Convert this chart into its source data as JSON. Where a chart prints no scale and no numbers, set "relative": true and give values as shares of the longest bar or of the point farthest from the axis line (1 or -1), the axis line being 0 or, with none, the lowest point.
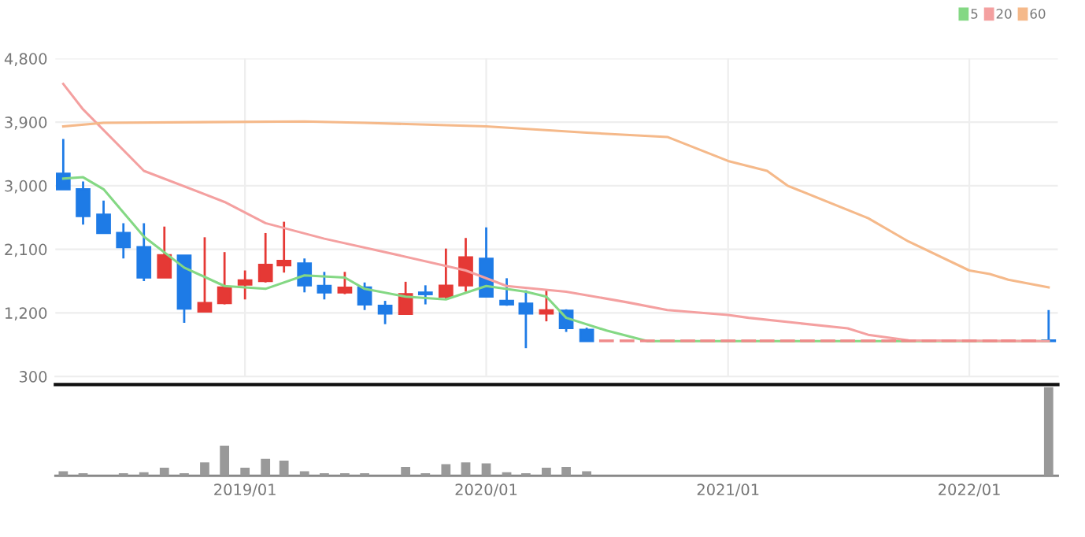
{
  "chart_data": [
    {
      "type": "candlestick",
      "x": [
        "2018-04",
        "2018-05",
        "2018-06",
        "2018-07",
        "2018-08",
        "2018-09",
        "2018-10",
        "2018-11",
        "2018-12",
        "2019-01",
        "2019-02",
        "2019-03",
        "2019-04",
        "2019-05",
        "2019-06",
        "2019-07",
        "2019-08",
        "2019-09",
        "2019-10",
        "2019-11",
        "2019-12",
        "2020-01",
        "2020-02",
        "2020-03",
        "2020-04",
        "2020-05",
        "2020-06",
        "2020-07",
        "2020-08",
        "2020-09",
        "2020-10",
        "2020-11",
        "2020-12",
        "2021-01",
        "2021-02",
        "2021-03",
        "2021-04",
        "2021-05",
        "2021-06",
        "2021-07",
        "2021-08",
        "2021-09",
        "2021-10",
        "2021-11",
        "2021-12",
        "2022-01",
        "2022-02",
        "2022-03",
        "2022-04",
        "2022-05"
      ],
      "ohlc": [
        [
          3170,
          3660,
          2950,
          2950
        ],
        [
          2950,
          3060,
          2450,
          2570
        ],
        [
          2590,
          2790,
          2330,
          2330
        ],
        [
          2330,
          2470,
          1970,
          2130
        ],
        [
          2130,
          2470,
          1650,
          1700
        ],
        [
          1700,
          2420,
          1700,
          2015
        ],
        [
          2010,
          2010,
          1060,
          1260
        ],
        [
          1220,
          2270,
          1220,
          1340
        ],
        [
          1340,
          2060,
          1320,
          1560
        ],
        [
          1600,
          1800,
          1390,
          1660
        ],
        [
          1650,
          2330,
          1630,
          1880
        ],
        [
          1875,
          2490,
          1770,
          1935
        ],
        [
          1900,
          1970,
          1490,
          1590
        ],
        [
          1580,
          1780,
          1390,
          1490
        ],
        [
          1490,
          1780,
          1465,
          1555
        ],
        [
          1560,
          1630,
          1240,
          1320
        ],
        [
          1300,
          1370,
          1040,
          1190
        ],
        [
          1185,
          1640,
          1185,
          1465
        ],
        [
          1487,
          1590,
          1320,
          1465
        ],
        [
          1430,
          2110,
          1385,
          1585
        ],
        [
          1590,
          2260,
          1500,
          1985
        ],
        [
          1965,
          2410,
          1420,
          1430
        ],
        [
          1370,
          1690,
          1300,
          1320
        ],
        [
          1330,
          1520,
          700,
          1190
        ],
        [
          1190,
          1520,
          1080,
          1235
        ],
        [
          1230,
          1250,
          930,
          985
        ],
        [
          960,
          990,
          800,
          800
        ],
        [
          800,
          800,
          800,
          800
        ],
        [
          800,
          800,
          800,
          800
        ],
        [
          800,
          800,
          800,
          800
        ],
        [
          800,
          800,
          800,
          800
        ],
        [
          800,
          800,
          800,
          800
        ],
        [
          800,
          800,
          800,
          800
        ],
        [
          800,
          800,
          800,
          800
        ],
        [
          800,
          800,
          800,
          800
        ],
        [
          800,
          800,
          800,
          800
        ],
        [
          800,
          800,
          800,
          800
        ],
        [
          800,
          800,
          800,
          800
        ],
        [
          800,
          800,
          800,
          800
        ],
        [
          800,
          800,
          800,
          800
        ],
        [
          800,
          800,
          800,
          800
        ],
        [
          800,
          800,
          800,
          800
        ],
        [
          800,
          800,
          800,
          800
        ],
        [
          800,
          800,
          800,
          800
        ],
        [
          800,
          800,
          800,
          800
        ],
        [
          800,
          800,
          800,
          800
        ],
        [
          800,
          800,
          800,
          800
        ],
        [
          800,
          800,
          800,
          800
        ],
        [
          800,
          800,
          800,
          800
        ],
        [
          800,
          1240,
          800,
          800
        ]
      ],
      "colors": [
        "#1e7be6",
        "#1e7be6",
        "#1e7be6",
        "#1e7be6",
        "#1e7be6",
        "#e53935",
        "#1e7be6",
        "#e53935",
        "#e53935",
        "#e53935",
        "#e53935",
        "#e53935",
        "#1e7be6",
        "#1e7be6",
        "#e53935",
        "#1e7be6",
        "#1e7be6",
        "#e53935",
        "#1e7be6",
        "#e53935",
        "#e53935",
        "#1e7be6",
        "#1e7be6",
        "#1e7be6",
        "#e53935",
        "#1e7be6",
        "#1e7be6",
        "#f08a8a",
        "#f08a8a",
        "#f08a8a",
        "#f08a8a",
        "#f08a8a",
        "#f08a8a",
        "#f08a8a",
        "#f08a8a",
        "#f08a8a",
        "#f08a8a",
        "#f08a8a",
        "#f08a8a",
        "#f08a8a",
        "#f08a8a",
        "#f08a8a",
        "#f08a8a",
        "#f08a8a",
        "#f08a8a",
        "#f08a8a",
        "#f08a8a",
        "#f08a8a",
        "#f08a8a",
        "#1e7be6"
      ],
      "series": [
        {
          "name": "5",
          "type": "line",
          "color": "#84d884",
          "x": [
            "2018-04",
            "2018-05",
            "2018-06",
            "2018-08",
            "2018-10",
            "2018-12",
            "2019-02",
            "2019-04",
            "2019-06",
            "2019-07",
            "2019-09",
            "2019-11",
            "2020-01",
            "2020-03",
            "2020-04",
            "2020-05",
            "2020-07",
            "2020-09",
            "2022-05"
          ],
          "values": [
            3100,
            3120,
            2950,
            2280,
            1840,
            1580,
            1540,
            1730,
            1700,
            1540,
            1430,
            1390,
            1580,
            1500,
            1430,
            1130,
            950,
            800,
            800
          ]
        },
        {
          "name": "20",
          "type": "line",
          "color": "#f4a0a0",
          "x": [
            "2018-04",
            "2018-05",
            "2018-08",
            "2018-12",
            "2019-02",
            "2019-05",
            "2019-08",
            "2019-12",
            "2020-02",
            "2020-05",
            "2020-08",
            "2020-10",
            "2021-01",
            "2021-02",
            "2021-07",
            "2021-08",
            "2021-10",
            "2022-05"
          ],
          "values": [
            4440,
            4080,
            3210,
            2770,
            2470,
            2250,
            2060,
            1800,
            1580,
            1500,
            1350,
            1240,
            1170,
            1130,
            980,
            890,
            810,
            800
          ]
        },
        {
          "name": "60",
          "type": "line",
          "color": "#f5b98a",
          "x": [
            "2018-04",
            "2018-06",
            "2019-04",
            "2019-07",
            "2020-01",
            "2020-06",
            "2020-10",
            "2021-01",
            "2021-03",
            "2021-04",
            "2021-08",
            "2021-10",
            "2022-01",
            "2022-02",
            "2022-03",
            "2022-05"
          ],
          "values": [
            3840,
            3890,
            3910,
            3890,
            3840,
            3750,
            3690,
            3350,
            3210,
            3000,
            2540,
            2210,
            1800,
            1750,
            1670,
            1560
          ]
        }
      ],
      "xlim": [
        "2018-03-20",
        "2022-05-15"
      ],
      "xticks": [
        {
          "value": "2019-01",
          "label": null
        },
        {
          "value": "2020-01",
          "label": null
        },
        {
          "value": "2021-01",
          "label": null
        },
        {
          "value": "2022-01",
          "label": null
        }
      ],
      "ylim": [
        300,
        4800
      ],
      "yticks": [
        {
          "value": 300,
          "label": "300"
        },
        {
          "value": 1200,
          "label": "1,200"
        },
        {
          "value": 2100,
          "label": "2,100"
        },
        {
          "value": 3000,
          "label": "3,000"
        },
        {
          "value": 3900,
          "label": "3,900"
        },
        {
          "value": 4800,
          "label": "4,800"
        }
      ],
      "tick_labels": "y",
      "grid": true,
      "legend": "top right"
    },
    {
      "type": "bar",
      "relative": true,
      "x": [
        "2018-04",
        "2018-05",
        "2018-06",
        "2018-07",
        "2018-08",
        "2018-09",
        "2018-10",
        "2018-11",
        "2018-12",
        "2019-01",
        "2019-02",
        "2019-03",
        "2019-04",
        "2019-05",
        "2019-06",
        "2019-07",
        "2019-08",
        "2019-09",
        "2019-10",
        "2019-11",
        "2019-12",
        "2020-01",
        "2020-02",
        "2020-03",
        "2020-04",
        "2020-05",
        "2020-06",
        "2020-07",
        "2020-08",
        "2020-09",
        "2020-10",
        "2020-11",
        "2020-12",
        "2021-01",
        "2021-02",
        "2021-03",
        "2021-04",
        "2021-05",
        "2021-06",
        "2021-07",
        "2021-08",
        "2021-09",
        "2021-10",
        "2021-11",
        "2021-12",
        "2022-01",
        "2022-02",
        "2022-03",
        "2022-04",
        "2022-05"
      ],
      "values": [
        0.05,
        0.03,
        0,
        0.03,
        0.04,
        0.09,
        0.03,
        0.15,
        0.34,
        0.09,
        0.19,
        0.17,
        0.05,
        0.03,
        0.03,
        0.03,
        0,
        0.1,
        0.03,
        0.13,
        0.15,
        0.14,
        0.04,
        0.03,
        0.09,
        0.1,
        0.05,
        0,
        0,
        0,
        0,
        0,
        0,
        0,
        0,
        0,
        0,
        0,
        0,
        0,
        0,
        0,
        0,
        0,
        0,
        0,
        0,
        0,
        0,
        1
      ],
      "color": "#999999",
      "xlim": [
        "2018-03-20",
        "2022-05-15"
      ],
      "xticks": [
        {
          "value": "2019-01",
          "label": "2019/01"
        },
        {
          "value": "2020-01",
          "label": "2020/01"
        },
        {
          "value": "2021-01",
          "label": "2021/01"
        },
        {
          "value": "2022-01",
          "label": "2022/01"
        }
      ],
      "tick_labels": "x"
    }
  ]
}
